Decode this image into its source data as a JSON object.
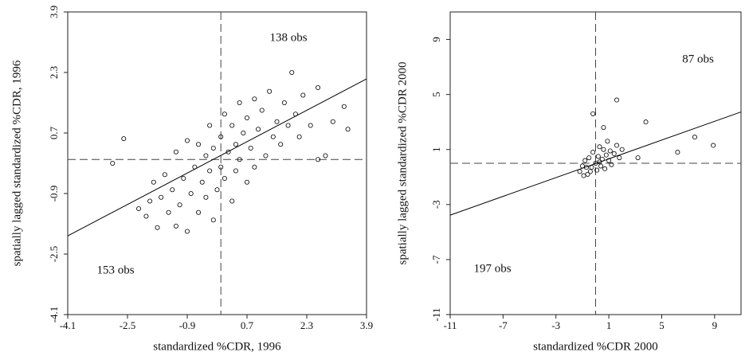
{
  "chart_data": [
    {
      "type": "scatter",
      "color": "#000000",
      "xlabel": "standardized %CDR, 1996",
      "ylabel": "spatially lagged standardized %CDR, 1996",
      "xlim": [
        -4.1,
        3.9
      ],
      "ylim": [
        -4.1,
        3.9
      ],
      "xticks": [
        -4.1,
        -2.5,
        -0.9,
        0.7,
        2.3,
        3.9
      ],
      "yticks": [
        -4.1,
        -2.5,
        -0.9,
        0.7,
        2.3,
        3.9
      ],
      "ref_x": 0,
      "ref_y": 0,
      "fit_line": {
        "x": [
          -4.1,
          3.9
        ],
        "y": [
          -2.02,
          2.13
        ]
      },
      "annotations": [
        "138 obs",
        "153 obs"
      ],
      "x": [
        -2.6,
        -2.9,
        -2.2,
        -2.0,
        -1.9,
        -1.8,
        -1.7,
        -1.6,
        -1.5,
        -1.4,
        -1.3,
        -1.2,
        -1.1,
        -1.0,
        -0.9,
        -0.9,
        -0.8,
        -0.7,
        -0.6,
        -0.6,
        -0.5,
        -0.4,
        -0.4,
        -0.3,
        -0.3,
        -0.2,
        -0.2,
        -0.1,
        0.0,
        0.0,
        0.1,
        0.1,
        0.2,
        0.3,
        0.3,
        0.4,
        0.4,
        0.5,
        0.5,
        0.6,
        0.7,
        0.7,
        0.8,
        0.9,
        0.9,
        1.0,
        1.1,
        1.2,
        1.3,
        1.4,
        1.5,
        1.6,
        1.7,
        1.8,
        1.9,
        2.0,
        2.1,
        2.2,
        2.4,
        2.6,
        2.8,
        3.0,
        3.3,
        3.4,
        2.6,
        -1.2
      ],
      "y": [
        0.55,
        -0.1,
        -1.3,
        -1.5,
        -1.1,
        -0.6,
        -1.8,
        -1.0,
        -0.4,
        -1.4,
        -0.8,
        0.2,
        -1.2,
        -0.5,
        -1.9,
        0.5,
        -0.9,
        -0.2,
        -1.4,
        0.4,
        -0.6,
        0.1,
        -1.0,
        0.9,
        -0.3,
        -1.6,
        0.3,
        -0.8,
        0.6,
        -0.2,
        1.2,
        -0.5,
        0.2,
        -1.1,
        0.9,
        0.4,
        -0.3,
        1.5,
        0.0,
        0.7,
        -0.6,
        1.1,
        0.3,
        1.6,
        -0.2,
        0.8,
        1.3,
        0.1,
        1.8,
        0.6,
        1.0,
        0.4,
        1.5,
        0.9,
        2.3,
        1.2,
        0.6,
        1.7,
        0.9,
        0.0,
        0.1,
        1.0,
        1.4,
        0.8,
        1.9,
        -1.76
      ]
    },
    {
      "type": "scatter",
      "color": "#000000",
      "xlabel": "standardized %CDR 2000",
      "ylabel": "spatially lagged standardized %CDR 2000",
      "xlim": [
        -11,
        11
      ],
      "ylim": [
        -11,
        11
      ],
      "xticks": [
        -11,
        -7,
        -3,
        1,
        5,
        9
      ],
      "yticks": [
        -11,
        -7,
        -3,
        1,
        5,
        9
      ],
      "ref_x": 0,
      "ref_y": 0,
      "fit_line": {
        "x": [
          -11,
          11
        ],
        "y": [
          -3.77,
          3.73
        ]
      },
      "annotations": [
        "87 obs",
        "197 obs"
      ],
      "x": [
        -1.2,
        -1.0,
        -0.8,
        -0.6,
        -0.5,
        -0.3,
        -0.2,
        0.0,
        0.1,
        0.2,
        0.3,
        0.4,
        0.5,
        0.6,
        0.7,
        0.8,
        0.9,
        1.0,
        1.1,
        1.2,
        1.4,
        1.6,
        1.8,
        2.0,
        -0.9,
        -0.4,
        0.3,
        -0.7,
        -0.2,
        0.6,
        1.6,
        3.8,
        6.2,
        7.5,
        8.9,
        3.2
      ],
      "y": [
        -0.6,
        -0.2,
        0.2,
        -0.8,
        0.4,
        -0.3,
        0.8,
        0.0,
        -0.5,
        0.5,
        1.2,
        -0.2,
        0.3,
        1.0,
        -0.4,
        0.6,
        1.6,
        0.2,
        0.9,
        -0.1,
        0.7,
        1.3,
        0.4,
        1.0,
        -0.9,
        -0.6,
        0.1,
        -0.3,
        3.6,
        2.6,
        4.6,
        3.0,
        0.8,
        1.9,
        1.3,
        0.4
      ]
    }
  ]
}
